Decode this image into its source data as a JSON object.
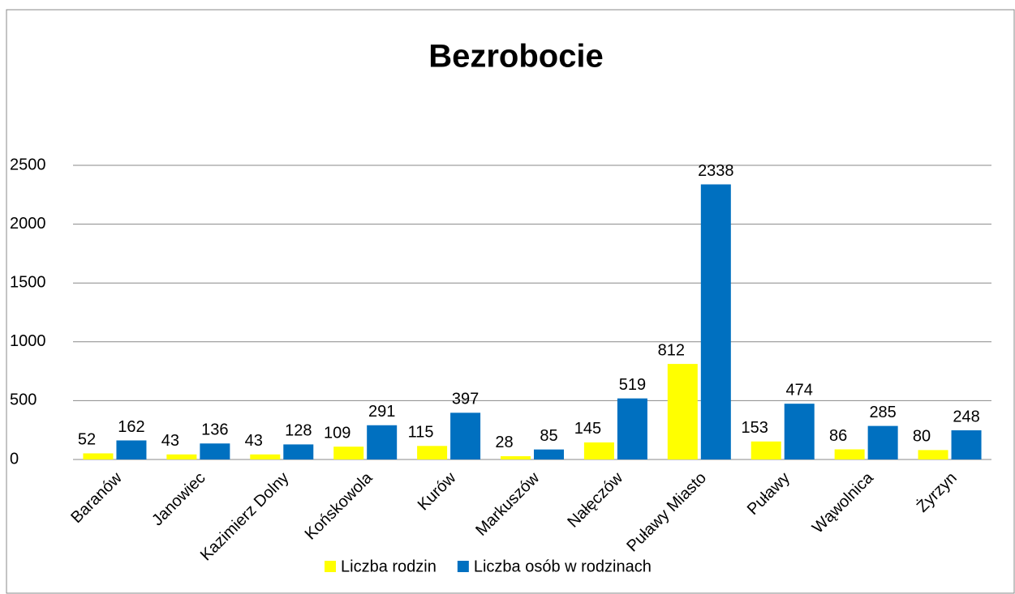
{
  "chart_data": {
    "type": "bar",
    "title": "Bezrobocie",
    "categories": [
      "Baranów",
      "Janowiec",
      "Kazimierz Dolny",
      "Końskowola",
      "Kurów",
      "Markuszów",
      "Nałęczów",
      "Puławy Miasto",
      "Puławy",
      "Wąwolnica",
      "Żyrzyn"
    ],
    "series": [
      {
        "name": "Liczba rodzin",
        "color": "#ffff00",
        "values": [
          52,
          43,
          43,
          109,
          115,
          28,
          145,
          812,
          153,
          86,
          80
        ]
      },
      {
        "name": "Liczba osób w rodzinach",
        "color": "#0070c0",
        "values": [
          162,
          136,
          128,
          291,
          397,
          85,
          519,
          2338,
          474,
          285,
          248
        ]
      }
    ],
    "ylim": [
      0,
      2500
    ],
    "yticks": [
      0,
      500,
      1000,
      1500,
      2000,
      2500
    ],
    "grid": true,
    "legend": "bottom"
  }
}
